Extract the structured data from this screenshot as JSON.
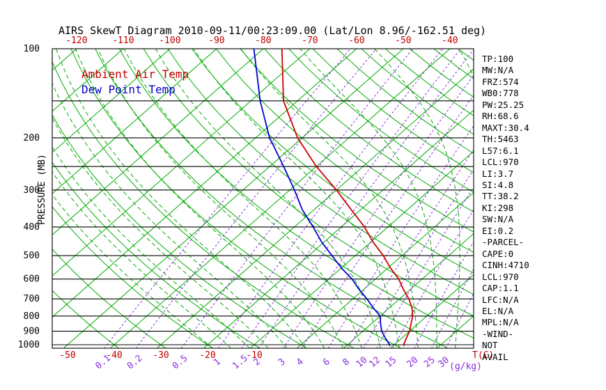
{
  "title": "AIRS SkewT Diagram 2010-09-11/00:23:09.00 (Lat/Lon 8.96/-162.51 deg)",
  "stats_panel": [
    "TP:100",
    "MW:N/A",
    "FRZ:574",
    "WB0:778",
    "PW:25.25",
    "RH:68.6",
    "MAXT:30.4",
    "TH:5463",
    "L57:6.1",
    "LCL:970",
    "LI:3.7",
    "SI:4.8",
    "TT:38.2",
    "KI:298",
    "SW:N/A",
    "EI:0.2",
    "-PARCEL-",
    "CAPE:0",
    "CINH:4710",
    "LCL:970",
    "CAP:1.1",
    "LFC:N/A",
    "EL:N/A",
    "MPL:N/A",
    "-WIND-",
    "NOT",
    "AVAIL"
  ],
  "chart_data": {
    "type": "line",
    "subtype": "skew-t-log-p",
    "title": "AIRS SkewT Diagram 2010-09-11/00:23:09.00 (Lat/Lon 8.96/-162.51 deg)",
    "axes": {
      "y_label": "PRESSURE (MB)",
      "y_scale": "log",
      "y_range_mb": [
        100,
        1030
      ],
      "y_ticks": [
        100,
        200,
        300,
        400,
        500,
        600,
        700,
        800,
        900,
        1000
      ],
      "y_grid_lines": [
        100,
        150,
        200,
        250,
        300,
        400,
        500,
        600,
        700,
        800,
        900,
        1000
      ],
      "top_temp_ticks": [
        -120,
        -110,
        -100,
        -90,
        -80,
        -70,
        -60,
        -50,
        -40
      ],
      "bottom_temp_ticks": [
        -50,
        -40,
        -30,
        -20,
        -10
      ],
      "temp_unit_label": "T(C)",
      "mixing_ratio_ticks": [
        0.1,
        0.2,
        0.5,
        1,
        1.5,
        2,
        3,
        4,
        6,
        8,
        10,
        12,
        15,
        20,
        25,
        30
      ],
      "mixing_unit_label": "(g/kg)"
    },
    "series": [
      {
        "name": "Ambient Air Temp",
        "color": "#cc0000",
        "pressure_mb": [
          1010,
          1000,
          950,
          900,
          850,
          800,
          750,
          700,
          650,
          600,
          550,
          500,
          450,
          400,
          350,
          300,
          250,
          200,
          150,
          100
        ],
        "temp_c": [
          22.4,
          22,
          21,
          20,
          18.5,
          17,
          14.8,
          12,
          8.5,
          5,
          0.5,
          -4,
          -9.5,
          -15,
          -22,
          -30,
          -40,
          -51,
          -63,
          -76
        ]
      },
      {
        "name": "Dew Point Temp",
        "color": "#0000cc",
        "pressure_mb": [
          1010,
          1000,
          950,
          900,
          850,
          800,
          750,
          700,
          650,
          600,
          550,
          500,
          450,
          400,
          350,
          300,
          250,
          200,
          150,
          100
        ],
        "temp_c": [
          19.3,
          19,
          16.5,
          14,
          12,
          10,
          6.5,
          3,
          -1,
          -5,
          -10,
          -15,
          -20.5,
          -26,
          -32.5,
          -39,
          -47,
          -57,
          -68,
          -82
        ]
      }
    ],
    "background_lines": {
      "isotherms_c": {
        "from": -160,
        "to": 40,
        "step": 10
      },
      "dry_adiabats_theta_c": {
        "from": -40,
        "to": 180,
        "step": 10
      },
      "moist_adiabats_surface_temp_c": [
        -18,
        -14,
        -10,
        -6,
        -2,
        2,
        6,
        10,
        14,
        18,
        22,
        26,
        30,
        34,
        38
      ],
      "mixing_ratio_g_kg": [
        0.1,
        0.2,
        0.5,
        1,
        1.5,
        2,
        3,
        4,
        6,
        8,
        10,
        12,
        15,
        20,
        25,
        30
      ]
    },
    "colors": {
      "isotherm": "#00aa00",
      "adiabat": "#00aa00",
      "mixing_ratio": "#8a2be2",
      "pressure_line": "#000000",
      "frame": "#000000",
      "ambient_temp": "#cc0000",
      "dew_point": "#0000cc",
      "top_axis_text": "#c00000",
      "mixing_text": "#8a2be2",
      "title_text": "#000000"
    }
  }
}
